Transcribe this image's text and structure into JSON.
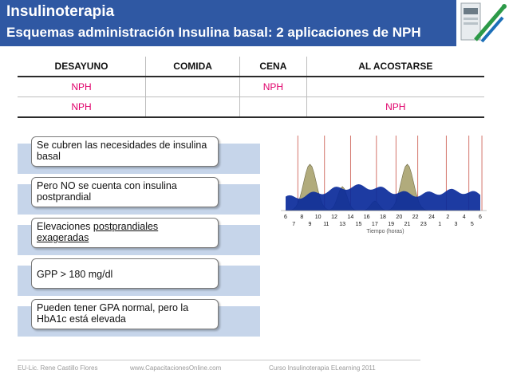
{
  "header": {
    "title": "Insulinoterapia",
    "subtitle": "Esquemas administración  Insulina basal: 2 aplicaciones de NPH"
  },
  "schedule": {
    "columns": [
      "DESAYUNO",
      "COMIDA",
      "CENA",
      "AL ACOSTARSE"
    ],
    "rows": [
      [
        "NPH",
        "",
        "NPH",
        ""
      ],
      [
        "NPH",
        "",
        "",
        "NPH"
      ]
    ]
  },
  "points": {
    "p1": "Se cubren las necesidades de insulina basal",
    "p2": "Pero NO se cuenta con insulina postprandial",
    "p3_a": "Elevaciones ",
    "p3_b": "postprandiales",
    "p3_c": "exageradas",
    "p4": "GPP > 180 mg/dl",
    "p5": "Pueden tener GPA normal, pero la HbA1c está elevada"
  },
  "chart_data": {
    "type": "area",
    "x_ticks_top": [
      "6",
      "8",
      "10",
      "12",
      "14",
      "16",
      "18",
      "20",
      "22",
      "24",
      "2",
      "4",
      "6"
    ],
    "x_ticks_bottom": [
      "7",
      "9",
      "11",
      "13",
      "15",
      "17",
      "19",
      "21",
      "23",
      "1",
      "3",
      "5"
    ],
    "xlabel": "Tiempo (horas)",
    "series": [
      {
        "color": "#b1ab7c"
      },
      {
        "color": "#0a2a9a"
      }
    ]
  },
  "footer": {
    "author": "EU-Lic. Rene Castillo Flores",
    "site": "www.CapacitacionesOnline.com",
    "course": "Curso Insulinoterapia ELearning 2011"
  },
  "colors": {
    "header": "#2f58a3",
    "nph": "#e0006a",
    "band": "#c6d5ea"
  }
}
